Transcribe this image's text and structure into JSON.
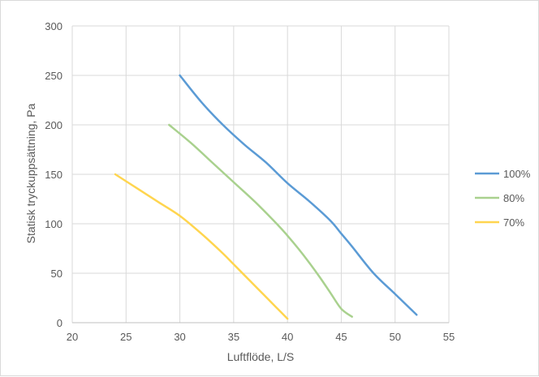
{
  "chart_data": {
    "type": "line",
    "title": "",
    "xlabel": "Luftflöde, L/S",
    "ylabel": "Statisk tryckuppsättning, Pa",
    "xlim": [
      20,
      55
    ],
    "ylim": [
      0,
      300
    ],
    "x_ticks": [
      20,
      25,
      30,
      35,
      40,
      45,
      50,
      55
    ],
    "y_ticks": [
      0,
      50,
      100,
      150,
      200,
      250,
      300
    ],
    "grid": true,
    "legend_position": "right",
    "series": [
      {
        "name": "100%",
        "color": "#5b9bd5",
        "points": [
          [
            30,
            250
          ],
          [
            32,
            223
          ],
          [
            34,
            200
          ],
          [
            36,
            180
          ],
          [
            38,
            162
          ],
          [
            40,
            141
          ],
          [
            42,
            123
          ],
          [
            44,
            103
          ],
          [
            45,
            90
          ],
          [
            46,
            77
          ],
          [
            48,
            50
          ],
          [
            50,
            29
          ],
          [
            52,
            8
          ]
        ]
      },
      {
        "name": "80%",
        "color": "#a9d18e",
        "points": [
          [
            29,
            200
          ],
          [
            31,
            182
          ],
          [
            33,
            162
          ],
          [
            35,
            142
          ],
          [
            37,
            122
          ],
          [
            39,
            100
          ],
          [
            40,
            88
          ],
          [
            41,
            75
          ],
          [
            42,
            61
          ],
          [
            43,
            46
          ],
          [
            44,
            30
          ],
          [
            45,
            14
          ],
          [
            46,
            6
          ]
        ]
      },
      {
        "name": "70%",
        "color": "#ffd54f",
        "points": [
          [
            24,
            150
          ],
          [
            26,
            136
          ],
          [
            28,
            122
          ],
          [
            30,
            108
          ],
          [
            32,
            90
          ],
          [
            34,
            70
          ],
          [
            35,
            59
          ],
          [
            36,
            48
          ],
          [
            37,
            37
          ],
          [
            38,
            26
          ],
          [
            39,
            15
          ],
          [
            40,
            4
          ]
        ]
      }
    ]
  }
}
